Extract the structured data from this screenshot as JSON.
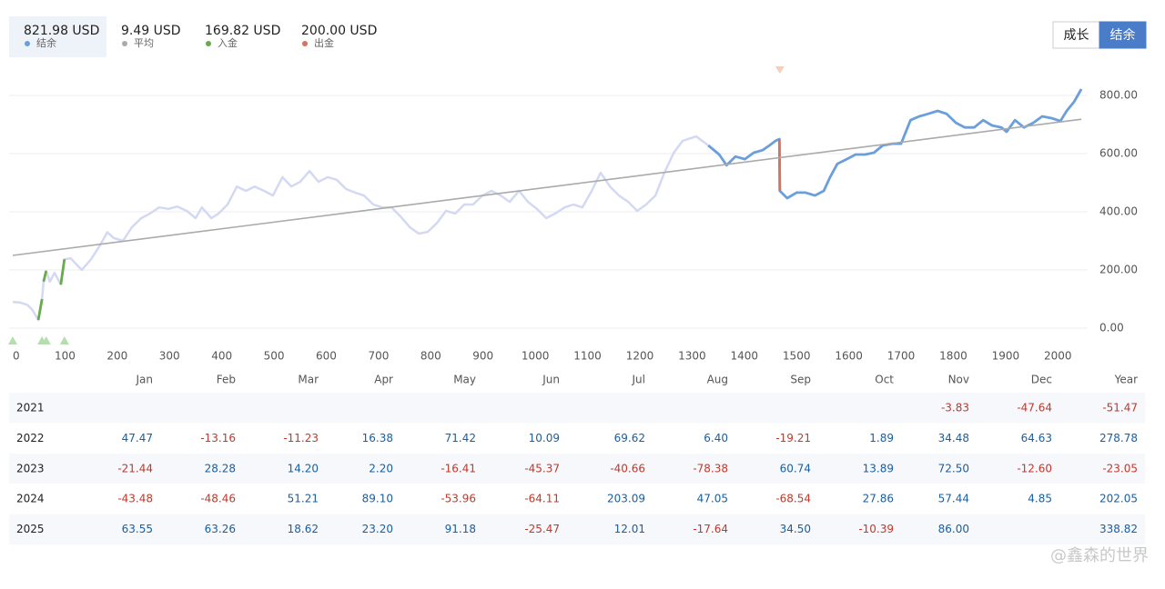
{
  "header": {
    "stats": [
      {
        "value": "821.98 USD",
        "label": "结余",
        "color": "#6a9fdb"
      },
      {
        "value": "9.49 USD",
        "label": "平均",
        "color": "#aaaaaa"
      },
      {
        "value": "169.82 USD",
        "label": "入金",
        "color": "#6aaa4f"
      },
      {
        "value": "200.00 USD",
        "label": "出金",
        "color": "#d9725a"
      }
    ],
    "selected": 0
  },
  "toggle": {
    "buttons": [
      "成长",
      "结余"
    ],
    "active": 1
  },
  "chart_data": {
    "type": "line",
    "xlim": [
      0,
      2057
    ],
    "ylim": [
      -55,
      880
    ],
    "xticks": [
      0,
      100,
      200,
      300,
      400,
      500,
      600,
      700,
      800,
      900,
      1000,
      1100,
      1200,
      1300,
      1400,
      1500,
      1600,
      1700,
      1800,
      1900,
      2000
    ],
    "yticks": [
      {
        "value": 0,
        "label": "0.00"
      },
      {
        "value": 200,
        "label": "200.00"
      },
      {
        "value": 400,
        "label": "400.00"
      },
      {
        "value": 600,
        "label": "600.00"
      },
      {
        "value": 800,
        "label": "800.00"
      }
    ],
    "grid": true,
    "series": [
      {
        "role": "balance",
        "color": "#6a9fdb",
        "faded_color": "#d3d9f3",
        "highlight_from_x": 1331,
        "x": [
          0,
          14,
          28,
          38,
          49,
          56,
          59,
          64,
          71,
          80,
          92,
          99,
          111,
          132,
          150,
          167,
          181,
          193,
          211,
          228,
          246,
          263,
          280,
          298,
          315,
          333,
          350,
          362,
          380,
          394,
          411,
          429,
          446,
          463,
          481,
          498,
          516,
          533,
          550,
          568,
          585,
          603,
          620,
          638,
          655,
          672,
          690,
          707,
          725,
          742,
          760,
          777,
          794,
          812,
          829,
          847,
          864,
          881,
          899,
          916,
          934,
          951,
          969,
          986,
          1003,
          1021,
          1038,
          1056,
          1073,
          1090,
          1108,
          1125,
          1143,
          1160,
          1178,
          1195,
          1212,
          1230,
          1247,
          1265,
          1282,
          1308,
          1331,
          1352,
          1366,
          1383,
          1401,
          1418,
          1435,
          1448,
          1460,
          1467,
          1468,
          1482,
          1500,
          1517,
          1535,
          1552,
          1564,
          1578,
          1596,
          1613,
          1631,
          1648,
          1665,
          1683,
          1700,
          1718,
          1735,
          1752,
          1770,
          1787,
          1805,
          1822,
          1840,
          1857,
          1874,
          1892,
          1902,
          1918,
          1935,
          1953,
          1970,
          1988,
          2005,
          2017,
          2031,
          2045
        ],
        "values": [
          90,
          88,
          80,
          62,
          28,
          100,
          160,
          197,
          160,
          190,
          150,
          237,
          240,
          200,
          237,
          285,
          330,
          310,
          300,
          347,
          378,
          394,
          415,
          410,
          418,
          403,
          378,
          415,
          378,
          394,
          425,
          487,
          472,
          487,
          472,
          456,
          519,
          487,
          503,
          540,
          503,
          519,
          510,
          478,
          466,
          456,
          425,
          415,
          415,
          384,
          347,
          325,
          331,
          362,
          403,
          394,
          425,
          425,
          456,
          472,
          456,
          434,
          472,
          434,
          410,
          378,
          394,
          415,
          425,
          415,
          472,
          534,
          487,
          456,
          434,
          403,
          425,
          456,
          534,
          603,
          644,
          659,
          628,
          597,
          560,
          590,
          581,
          603,
          612,
          628,
          644,
          650,
          472,
          447,
          466,
          466,
          456,
          472,
          519,
          565,
          581,
          597,
          597,
          603,
          628,
          634,
          634,
          715,
          728,
          737,
          747,
          737,
          706,
          690,
          690,
          715,
          697,
          690,
          675,
          715,
          690,
          706,
          728,
          722,
          712,
          747,
          778,
          821.98
        ]
      },
      {
        "role": "trend",
        "color": "#aaaaaa",
        "x": [
          0,
          2045
        ],
        "values": [
          250,
          718
        ]
      }
    ],
    "events": [
      {
        "kind": "deposit",
        "x": 0,
        "color": "#6aaa4f",
        "marker_color": "#b5ddb0"
      },
      {
        "kind": "deposit",
        "x": 56,
        "color": "#6aaa4f",
        "marker_color": "#b5ddb0"
      },
      {
        "kind": "deposit",
        "x": 64,
        "color": "#6aaa4f",
        "marker_color": "#b5ddb0"
      },
      {
        "kind": "deposit",
        "x": 99,
        "color": "#6aaa4f",
        "marker_color": "#b5ddb0"
      },
      {
        "kind": "withdrawal",
        "x": 1468,
        "color": "#d9725a",
        "marker_color": "#f7cdb5"
      }
    ]
  },
  "table": {
    "columns": [
      "Jan",
      "Feb",
      "Mar",
      "Apr",
      "May",
      "Jun",
      "Jul",
      "Aug",
      "Sep",
      "Oct",
      "Nov",
      "Dec",
      "Year"
    ],
    "rows": [
      {
        "year": "2021",
        "cells": [
          null,
          null,
          null,
          null,
          null,
          null,
          null,
          null,
          null,
          null,
          "-3.83",
          "-47.64",
          "-51.47"
        ]
      },
      {
        "year": "2022",
        "cells": [
          "47.47",
          "-13.16",
          "-11.23",
          "16.38",
          "71.42",
          "10.09",
          "69.62",
          "6.40",
          "-19.21",
          "1.89",
          "34.48",
          "64.63",
          "278.78"
        ]
      },
      {
        "year": "2023",
        "cells": [
          "-21.44",
          "28.28",
          "14.20",
          "2.20",
          "-16.41",
          "-45.37",
          "-40.66",
          "-78.38",
          "60.74",
          "13.89",
          "72.50",
          "-12.60",
          "-23.05"
        ]
      },
      {
        "year": "2024",
        "cells": [
          "-43.48",
          "-48.46",
          "51.21",
          "89.10",
          "-53.96",
          "-64.11",
          "203.09",
          "47.05",
          "-68.54",
          "27.86",
          "57.44",
          "4.85",
          "202.05"
        ]
      },
      {
        "year": "2025",
        "cells": [
          "63.55",
          "63.26",
          "18.62",
          "23.20",
          "91.18",
          "-25.47",
          "12.01",
          "-17.64",
          "34.50",
          "-10.39",
          "86.00",
          null,
          "338.82"
        ]
      }
    ]
  },
  "watermark": "@鑫森的世界"
}
